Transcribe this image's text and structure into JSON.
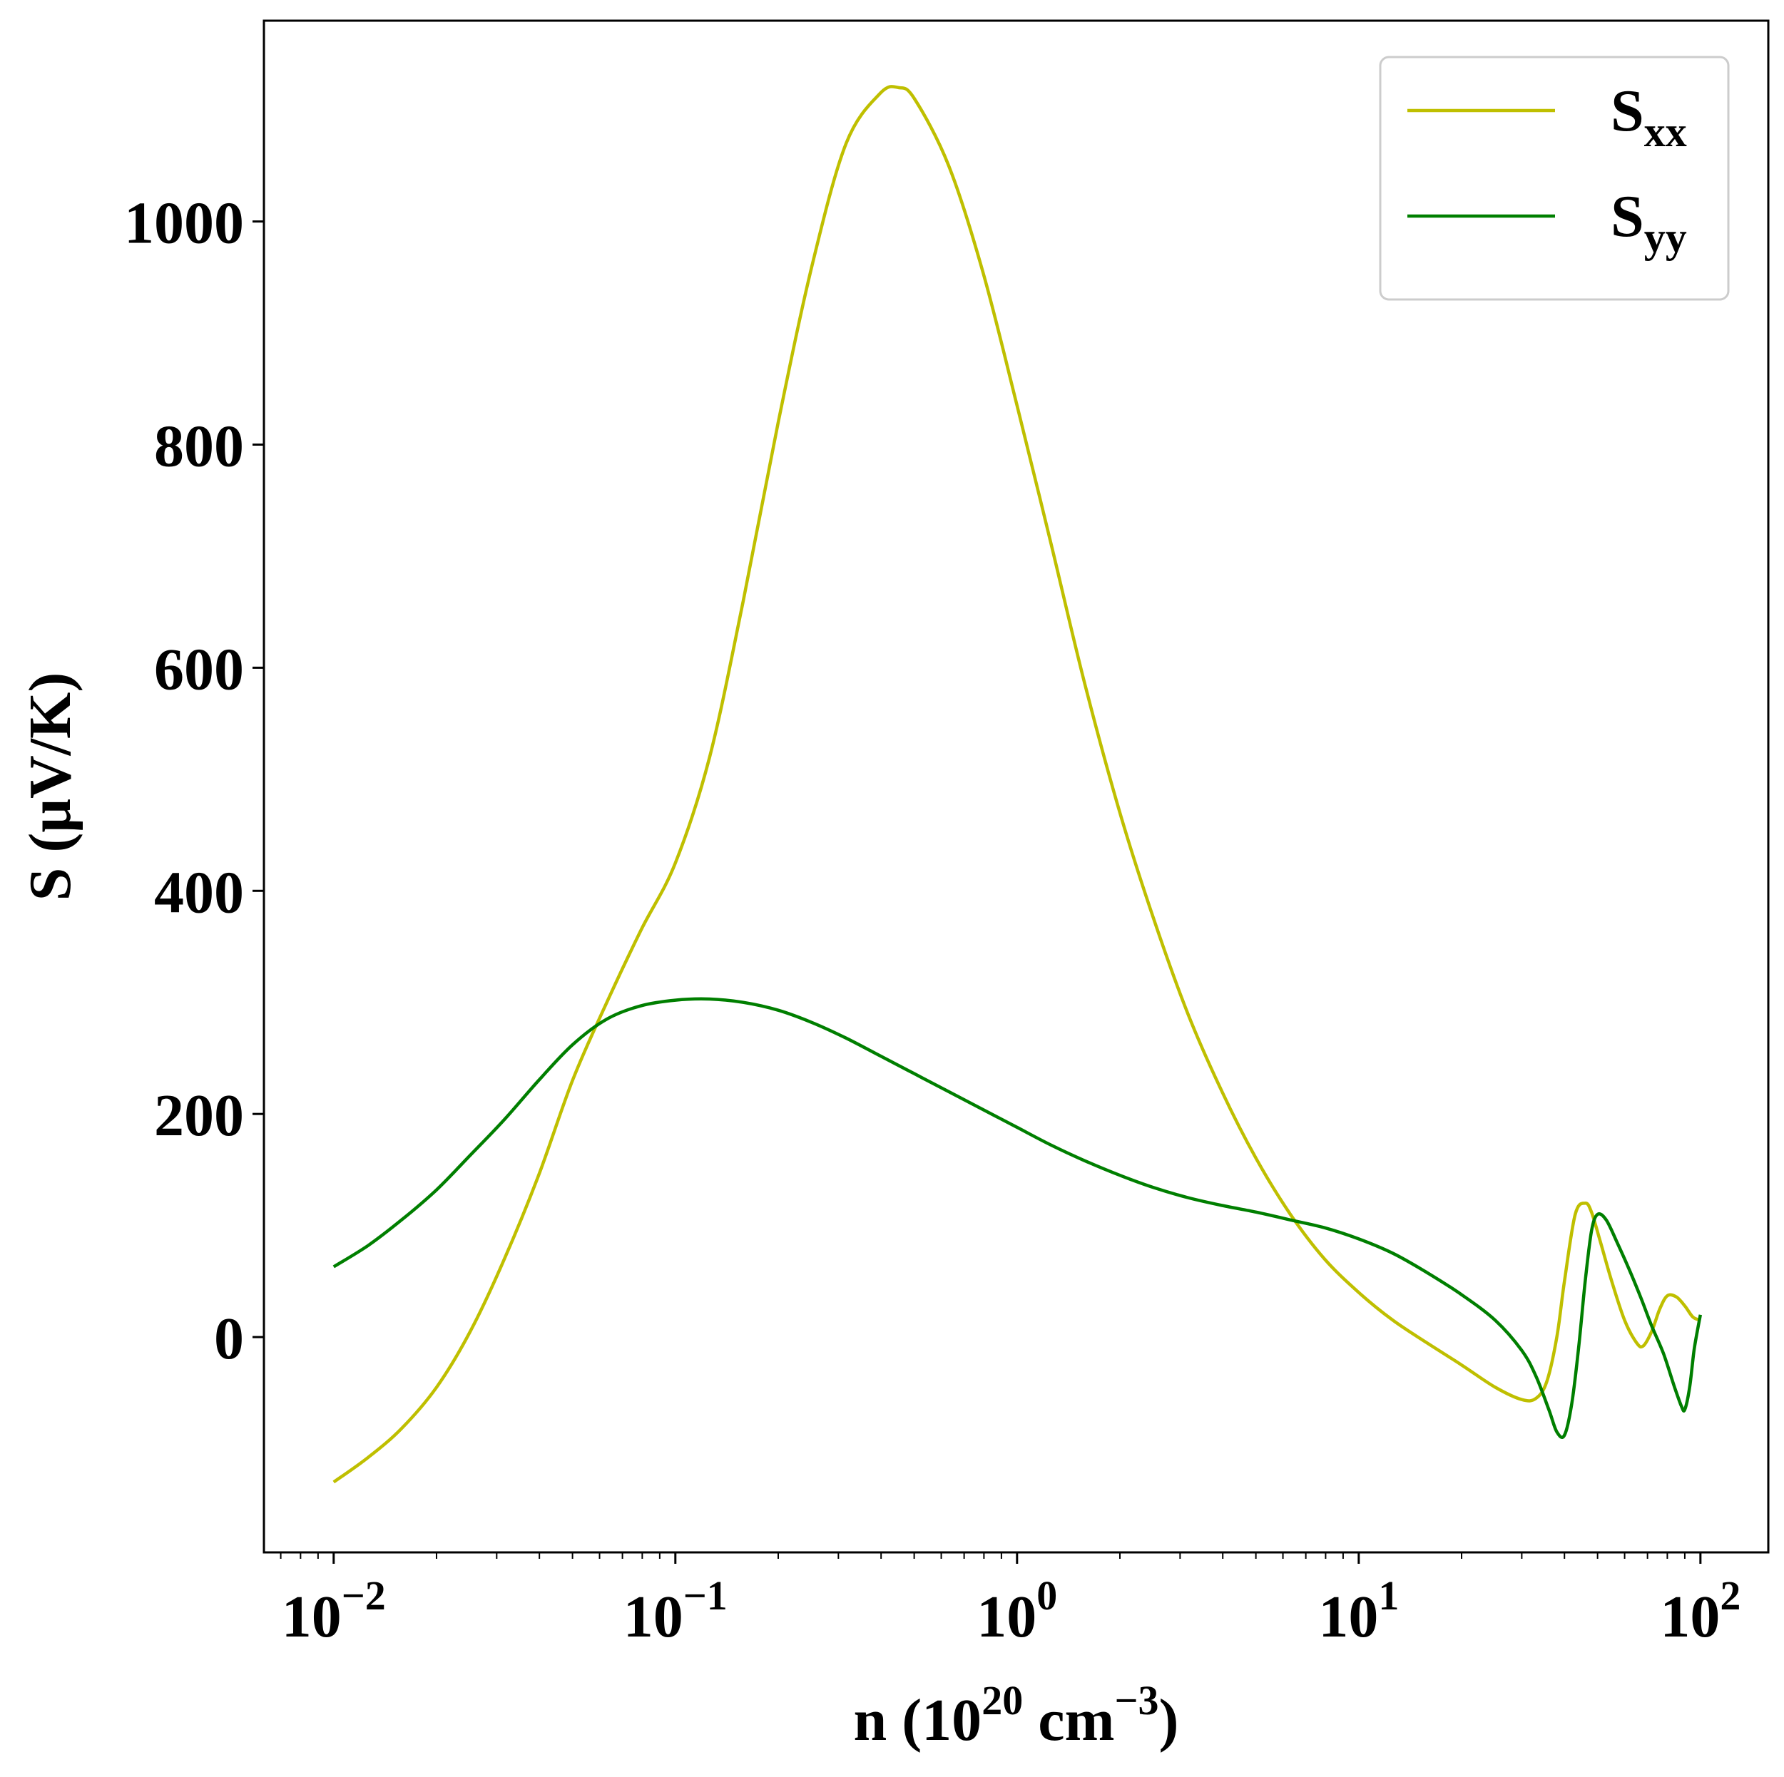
{
  "chart_data": {
    "type": "line",
    "xlabel": "n (10^20 cm^-3)",
    "xlabel_parts": {
      "pre": "n (10",
      "exp1": "20",
      "mid": " cm",
      "exp2": "−3",
      "post": ")"
    },
    "ylabel": "S (μV/K)",
    "x_scale": "log",
    "xlim": [
      0.00625,
      158
    ],
    "ylim": [
      -193,
      1180
    ],
    "x_ticks": [
      {
        "value": 0.01,
        "base": "10",
        "exp": "−2"
      },
      {
        "value": 0.1,
        "base": "10",
        "exp": "−1"
      },
      {
        "value": 1,
        "base": "10",
        "exp": "0"
      },
      {
        "value": 10,
        "base": "10",
        "exp": "1"
      },
      {
        "value": 100,
        "base": "10",
        "exp": "2"
      }
    ],
    "y_ticks": [
      0,
      200,
      400,
      600,
      800,
      1000
    ],
    "y_tick_labels": [
      "0",
      "200",
      "400",
      "600",
      "800",
      "1000"
    ],
    "grid": false,
    "legend": {
      "placement": "top-right"
    },
    "series": [
      {
        "name": "S",
        "name_sub": "xx",
        "color": "#bfbf00",
        "x": [
          0.01,
          0.0126,
          0.0158,
          0.02,
          0.0251,
          0.0316,
          0.0398,
          0.05,
          0.063,
          0.0794,
          0.1,
          0.126,
          0.158,
          0.2,
          0.251,
          0.316,
          0.398,
          0.45,
          0.501,
          0.631,
          0.794,
          1.0,
          1.26,
          1.58,
          2.0,
          2.51,
          3.16,
          3.98,
          5.01,
          6.31,
          7.94,
          10.0,
          12.6,
          15.8,
          20.0,
          25.1,
          30.0,
          33.0,
          35.5,
          38.0,
          40.0,
          43.0,
          46.0,
          48.0,
          51.0,
          55.0,
          60.0,
          65.0,
          68.0,
          72.0,
          76.0,
          80.0,
          85.0,
          90.0,
          95.0,
          100.0
        ],
        "y": [
          -130,
          -108,
          -82,
          -45,
          5,
          70,
          145,
          230,
          300,
          365,
          425,
          520,
          660,
          820,
          960,
          1070,
          1115,
          1120,
          1110,
          1050,
          955,
          835,
          710,
          585,
          470,
          375,
          290,
          220,
          160,
          110,
          70,
          40,
          15,
          -5,
          -25,
          -45,
          -56,
          -55,
          -40,
          0,
          50,
          110,
          120,
          112,
          85,
          50,
          15,
          -5,
          -8,
          5,
          25,
          37,
          36,
          28,
          18,
          15
        ]
      },
      {
        "name": "S",
        "name_sub": "yy",
        "color": "#007f00",
        "x": [
          0.01,
          0.0126,
          0.0158,
          0.02,
          0.0251,
          0.0316,
          0.0398,
          0.05,
          0.063,
          0.0794,
          0.1,
          0.126,
          0.158,
          0.2,
          0.251,
          0.316,
          0.398,
          0.501,
          0.631,
          0.794,
          1.0,
          1.26,
          1.58,
          2.0,
          2.51,
          3.16,
          3.98,
          5.01,
          6.31,
          7.94,
          10.0,
          12.6,
          15.8,
          20.0,
          25.1,
          30.0,
          33.0,
          36.0,
          38.0,
          40.0,
          42.0,
          44.0,
          46.0,
          48.0,
          50.0,
          53.0,
          57.0,
          62.0,
          67.0,
          72.0,
          78.0,
          84.0,
          88.0,
          90.0,
          93.0,
          96.0,
          100.0
        ],
        "y": [
          63,
          82,
          105,
          132,
          163,
          195,
          230,
          262,
          285,
          297,
          302,
          303,
          300,
          293,
          282,
          268,
          252,
          236,
          220,
          204,
          188,
          172,
          158,
          145,
          134,
          125,
          118,
          112,
          105,
          98,
          88,
          75,
          58,
          38,
          15,
          -12,
          -35,
          -65,
          -85,
          -88,
          -60,
          -10,
          50,
          95,
          110,
          105,
          85,
          60,
          35,
          10,
          -15,
          -45,
          -62,
          -65,
          -45,
          -10,
          20
        ]
      }
    ]
  }
}
